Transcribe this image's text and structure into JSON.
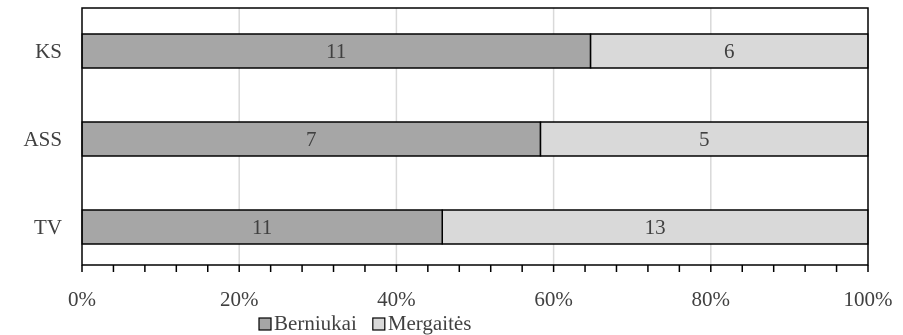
{
  "chart_data": {
    "type": "bar",
    "orientation": "horizontal",
    "stacked": "percent",
    "categories": [
      "KS",
      "ASS",
      "TV"
    ],
    "series": [
      {
        "name": "Berniukai",
        "values": [
          11,
          7,
          11
        ],
        "color": "#a6a6a6"
      },
      {
        "name": "Mergaitės",
        "values": [
          6,
          5,
          13
        ],
        "color": "#d9d9d9"
      }
    ],
    "xlim": [
      0,
      100
    ],
    "xticks": [
      "0%",
      "20%",
      "40%",
      "60%",
      "80%",
      "100%"
    ],
    "grid": true,
    "legend": "bottom"
  }
}
